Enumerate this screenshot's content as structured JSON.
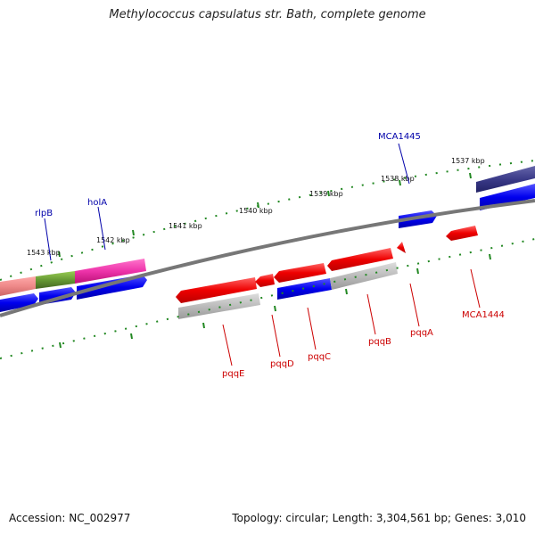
{
  "header": {
    "title": "Methylococcus capsulatus str. Bath, complete genome"
  },
  "footer": {
    "accession": "Accession: NC_002977",
    "info": "Topology: circular; Length: 3,304,561 bp; Genes: 3,010"
  },
  "scale_ticks": [
    "1543 kbp",
    "1542 kbp",
    "1541 kbp",
    "1540 kbp",
    "1539 kbp",
    "1538 kbp",
    "1537 kbp"
  ],
  "genes": [
    {
      "label": "rlpB",
      "color": "#0000aa"
    },
    {
      "label": "holA",
      "color": "#0000aa"
    },
    {
      "label": "MCA1445",
      "color": "#0000aa"
    },
    {
      "label": "pqqE",
      "color": "#cc0000"
    },
    {
      "label": "pqqD",
      "color": "#cc0000"
    },
    {
      "label": "pqqC",
      "color": "#cc0000"
    },
    {
      "label": "pqqB",
      "color": "#cc0000"
    },
    {
      "label": "pqqA",
      "color": "#cc0000"
    },
    {
      "label": "MCA1444",
      "color": "#cc0000"
    }
  ],
  "colors": {
    "forward_strand": "#0000ee",
    "reverse_strand": "#ee0000",
    "backbone": "#777777",
    "gc_track": "#aaaaaa",
    "tick_dots": "#228822",
    "highlight_magenta": "#ee33aa",
    "highlight_olive": "#669933",
    "highlight_salmon": "#ee8888",
    "highlight_navy": "#3a3a88"
  }
}
